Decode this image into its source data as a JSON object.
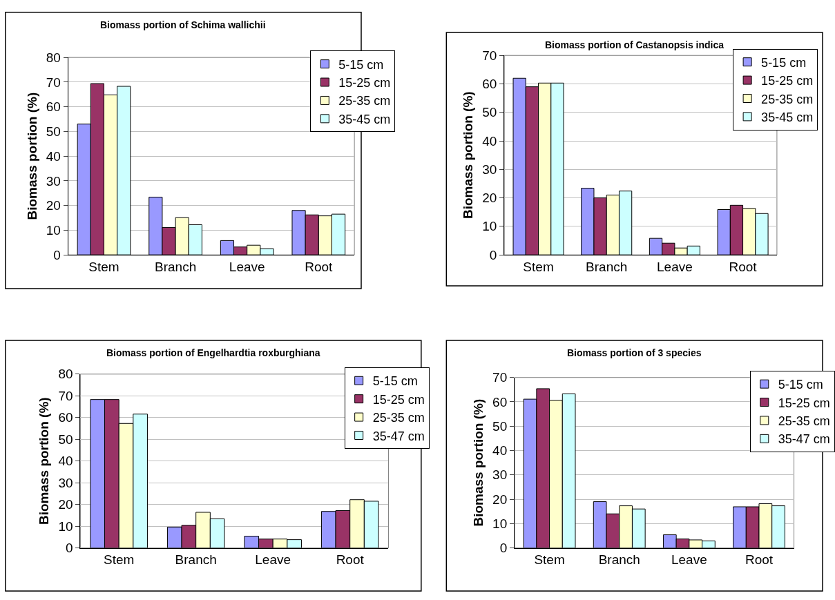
{
  "chart_data": [
    {
      "type": "bar",
      "title": "Biomass portion of Schima wallichii",
      "ylabel": "Biomass portion (%)",
      "categories": [
        "Stem",
        "Branch",
        "Leave",
        "Root"
      ],
      "ylim": [
        0,
        80
      ],
      "yticks": [
        0,
        10,
        20,
        30,
        40,
        50,
        60,
        70,
        80
      ],
      "grid": "y",
      "legend": "top right",
      "series": [
        {
          "name": "5-15 cm",
          "color": "#9999ff",
          "values": [
            53,
            23.4,
            5.8,
            18
          ]
        },
        {
          "name": "15-25 cm",
          "color": "#993366",
          "values": [
            69.4,
            11.1,
            3.2,
            16.2
          ]
        },
        {
          "name": "25-35 cm",
          "color": "#ffffcc",
          "values": [
            64.8,
            15.1,
            3.9,
            15.8
          ]
        },
        {
          "name": "35-45 cm",
          "color": "#ccffff",
          "values": [
            68.3,
            12.2,
            2.5,
            16.5
          ]
        }
      ]
    },
    {
      "type": "bar",
      "title": "Biomass portion of Castanopsis indica",
      "ylabel": "Biomass portion (%)",
      "categories": [
        "Stem",
        "Branch",
        "Leave",
        "Root"
      ],
      "ylim": [
        0,
        70
      ],
      "yticks": [
        0,
        10,
        20,
        30,
        40,
        50,
        60,
        70
      ],
      "grid": "y",
      "legend": "top right",
      "series": [
        {
          "name": "5-15 cm",
          "color": "#9999ff",
          "values": [
            62,
            23.4,
            5.8,
            15.9
          ]
        },
        {
          "name": "15-25 cm",
          "color": "#993366",
          "values": [
            59,
            20,
            4.1,
            17.4
          ]
        },
        {
          "name": "25-35 cm",
          "color": "#ffffcc",
          "values": [
            60.3,
            21,
            2.4,
            16.3
          ]
        },
        {
          "name": "35-45 cm",
          "color": "#ccffff",
          "values": [
            60.3,
            22.4,
            3.1,
            14.5
          ]
        }
      ]
    },
    {
      "type": "bar",
      "title": "Biomass portion of Engelhardtia roxburghiana",
      "ylabel": "Biomass portion (%)",
      "categories": [
        "Stem",
        "Branch",
        "Leave",
        "Root"
      ],
      "ylim": [
        0,
        80
      ],
      "yticks": [
        0,
        10,
        20,
        30,
        40,
        50,
        60,
        70,
        80
      ],
      "grid": "y",
      "legend": "top right",
      "series": [
        {
          "name": "5-15 cm",
          "color": "#9999ff",
          "values": [
            68.3,
            9.6,
            5.4,
            16.8
          ]
        },
        {
          "name": "15-25 cm",
          "color": "#993366",
          "values": [
            68.3,
            10.4,
            4.1,
            17.2
          ]
        },
        {
          "name": "25-35 cm",
          "color": "#ffffcc",
          "values": [
            57.3,
            16.4,
            4.1,
            22.2
          ]
        },
        {
          "name": "35-47 cm",
          "color": "#ccffff",
          "values": [
            61.6,
            13.4,
            3.8,
            21.5
          ]
        }
      ]
    },
    {
      "type": "bar",
      "title": "Biomass portion of 3 species",
      "ylabel": "Biomass portion (%)",
      "categories": [
        "Stem",
        "Branch",
        "Leave",
        "Root"
      ],
      "ylim": [
        0,
        70
      ],
      "yticks": [
        0,
        10,
        20,
        30,
        40,
        50,
        60,
        70
      ],
      "grid": "y",
      "legend": "top right",
      "series": [
        {
          "name": "5-15 cm",
          "color": "#9999ff",
          "values": [
            61.1,
            19,
            5.4,
            16.9
          ]
        },
        {
          "name": "15-25 cm",
          "color": "#993366",
          "values": [
            65.4,
            14,
            3.7,
            16.9
          ]
        },
        {
          "name": "25-35 cm",
          "color": "#ffffcc",
          "values": [
            60.6,
            17.3,
            3.3,
            18.2
          ]
        },
        {
          "name": "35-47 cm",
          "color": "#ccffff",
          "values": [
            63.3,
            16,
            2.9,
            17.3
          ]
        }
      ]
    }
  ]
}
